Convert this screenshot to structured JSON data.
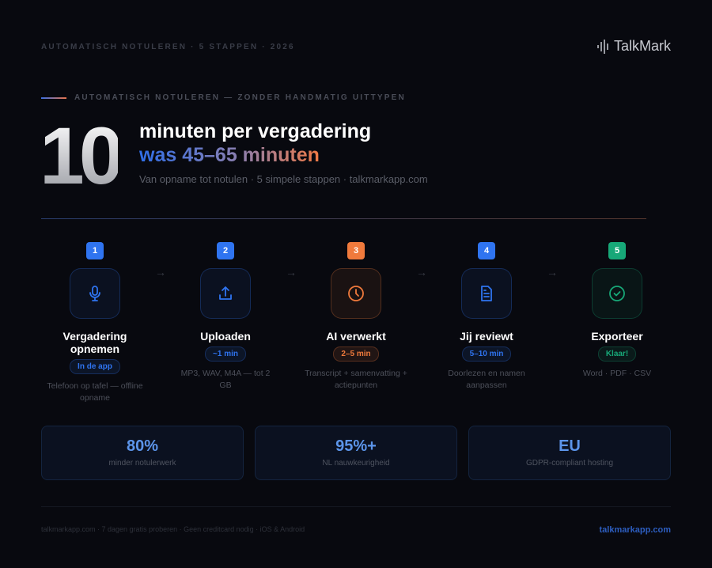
{
  "header": {
    "kicker": "AUTOMATISCH NOTULEREN · 5 STAPPEN · 2026",
    "logo": "TalkMark"
  },
  "hero": {
    "eyebrow": "AUTOMATISCH NOTULEREN — ZONDER HANDMATIG UITTYPEN",
    "big_number": "10",
    "title": "minuten per vergadering",
    "subtitle": "was 45–65 minuten",
    "caption": "Van opname tot notulen · 5 simpele stappen · talkmarkapp.com"
  },
  "steps": [
    {
      "num": "1",
      "title": "Vergadering opnemen",
      "pill": "In de app",
      "desc": "Telefoon op tafel — offline opname",
      "icon": "microphone-icon",
      "color": "#2f74f0"
    },
    {
      "num": "2",
      "title": "Uploaden",
      "pill": "~1 min",
      "desc": "MP3, WAV, M4A — tot 2 GB",
      "icon": "upload-icon",
      "color": "#2f74f0"
    },
    {
      "num": "3",
      "title": "AI verwerkt",
      "pill": "2–5 min",
      "desc": "Transcript + samenvatting + actiepunten",
      "icon": "clock-icon",
      "color": "#f07a3c"
    },
    {
      "num": "4",
      "title": "Jij reviewt",
      "pill": "5–10 min",
      "desc": "Doorlezen en namen aanpassen",
      "icon": "document-icon",
      "color": "#2f74f0"
    },
    {
      "num": "5",
      "title": "Exporteer",
      "pill": "Klaar!",
      "desc": "Word · PDF · CSV",
      "icon": "check-circle-icon",
      "color": "#17a878"
    }
  ],
  "stats": [
    {
      "value": "80%",
      "label": "minder notulerwerk"
    },
    {
      "value": "95%+",
      "label": "NL nauwkeurigheid"
    },
    {
      "value": "EU",
      "label": "GDPR-compliant hosting"
    }
  ],
  "footer": {
    "text": "talkmarkapp.com · 7 dagen gratis proberen · Geen creditcard nodig · iOS & Android",
    "link": "talkmarkapp.com"
  }
}
